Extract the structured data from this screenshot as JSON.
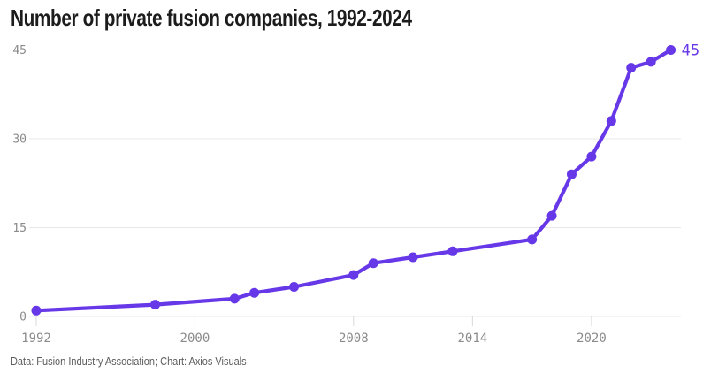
{
  "header": {
    "title": "Number of private fusion companies, 1992-2024"
  },
  "chart_data": {
    "type": "line",
    "title": "Number of private fusion companies, 1992-2024",
    "series": [
      {
        "name": "Private fusion companies",
        "x": [
          1992,
          1998,
          2002,
          2003,
          2005,
          2008,
          2009,
          2011,
          2013,
          2017,
          2018,
          2019,
          2020,
          2021,
          2022,
          2023,
          2024
        ],
        "values": [
          1,
          2,
          3,
          4,
          5,
          7,
          9,
          10,
          11,
          13,
          17,
          24,
          27,
          33,
          42,
          43,
          45
        ]
      }
    ],
    "xticks": [
      1992,
      2000,
      2008,
      2014,
      2020
    ],
    "yticks": [
      0,
      15,
      30,
      45
    ],
    "xlim": [
      1992,
      2024
    ],
    "ylim": [
      0,
      45
    ],
    "grid": "horizontal",
    "legend_position": "none",
    "end_point_label": "45"
  },
  "footer": {
    "text": "Data: Fusion Industry Association; Chart: Axios Visuals"
  },
  "colors": {
    "accent": "#6638e8",
    "gridline": "#e8e8e8",
    "tick": "#d8d8d8",
    "axis_label": "#8b8b8b",
    "title_text": "#1c1c1c",
    "footer_text": "#5c5c5c",
    "background": "#ffffff"
  }
}
